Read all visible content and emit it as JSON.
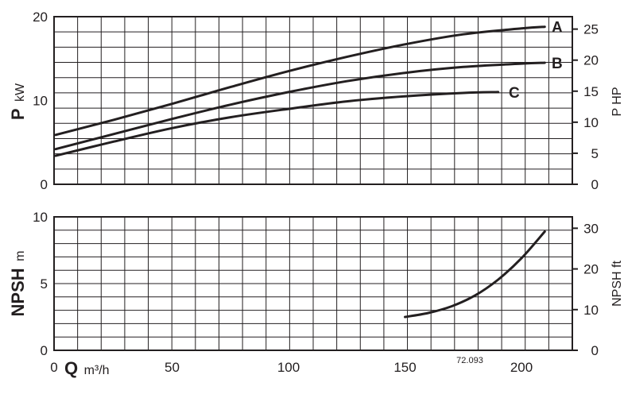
{
  "chart_data": [
    {
      "type": "line",
      "panel": "power",
      "ylabel": "P",
      "ylabel_unit": "kW",
      "y2label": "P HP",
      "xlim": [
        0,
        220
      ],
      "ylim": [
        0,
        20
      ],
      "y2lim": [
        0,
        27
      ],
      "x_ticks": [
        "0",
        "50",
        "100",
        "150",
        "200"
      ],
      "y_ticks": [
        "0",
        "10",
        "20"
      ],
      "y2_ticks": [
        "0",
        "5",
        "10",
        "15",
        "20",
        "25"
      ],
      "grid": true,
      "series": [
        {
          "name": "A",
          "x": [
            0,
            25,
            50,
            75,
            100,
            125,
            150,
            175,
            200,
            210
          ],
          "y": [
            5.9,
            7.7,
            9.6,
            11.6,
            13.5,
            15.2,
            16.7,
            17.9,
            18.6,
            18.8
          ]
        },
        {
          "name": "B",
          "x": [
            0,
            25,
            50,
            75,
            100,
            125,
            150,
            175,
            200,
            210
          ],
          "y": [
            4.2,
            6.0,
            7.8,
            9.5,
            11.0,
            12.3,
            13.3,
            14.0,
            14.4,
            14.5
          ]
        },
        {
          "name": "C",
          "x": [
            0,
            25,
            50,
            75,
            100,
            125,
            150,
            175,
            190
          ],
          "y": [
            3.4,
            5.1,
            6.7,
            8.0,
            9.0,
            9.9,
            10.5,
            10.9,
            11.0
          ]
        }
      ]
    },
    {
      "type": "line",
      "panel": "npsh",
      "ylabel": "NPSH",
      "ylabel_unit": "m",
      "y2label": "NPSH ft",
      "xlabel": "Q",
      "xlabel_unit": "m³/h",
      "xlim": [
        0,
        220
      ],
      "ylim": [
        0,
        10
      ],
      "y2lim": [
        0,
        32.8
      ],
      "x_ticks": [
        "0",
        "50",
        "100",
        "150",
        "200"
      ],
      "y_ticks": [
        "0",
        "5",
        "10"
      ],
      "y2_ticks": [
        "0",
        "10",
        "20",
        "30"
      ],
      "grid": true,
      "series": [
        {
          "name": "",
          "x": [
            150,
            160,
            170,
            180,
            190,
            200,
            210
          ],
          "y": [
            2.5,
            2.8,
            3.3,
            4.1,
            5.3,
            6.9,
            8.9
          ]
        }
      ]
    }
  ],
  "figure_code": "72.093"
}
